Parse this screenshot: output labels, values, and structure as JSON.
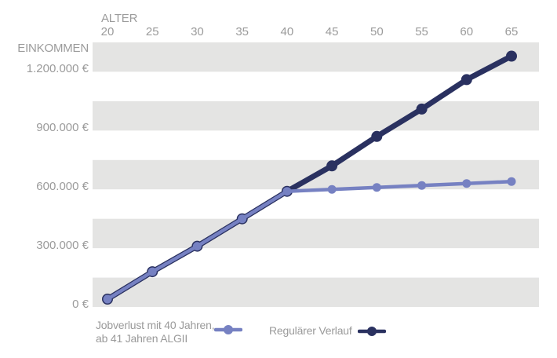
{
  "colors": {
    "background": "#ffffff",
    "band": "#e4e4e3",
    "axis_text": "#9b9b9b",
    "legend_text": "#9a9a9a",
    "series_jobverlust": "#7681c2",
    "series_regulaer": "#2a3160"
  },
  "axes": {
    "x_title": "ALTER",
    "y_title": "EINKOMMEN"
  },
  "legend": {
    "series1_label_line1": "Jobverlust mit 40 Jahren,",
    "series1_label_line2": "ab 41 Jahren ALGII",
    "series2_label": "Regulärer Verlauf"
  },
  "chart_data": {
    "type": "line",
    "title": "",
    "xlabel": "ALTER",
    "ylabel": "EINKOMMEN",
    "x": [
      20,
      25,
      30,
      35,
      40,
      45,
      50,
      55,
      60,
      65
    ],
    "xlim": [
      20,
      65
    ],
    "ylim": [
      0,
      1350000
    ],
    "y_ticks": [
      {
        "value": 0,
        "label": "0 €"
      },
      {
        "value": 300000,
        "label": "300.000 €"
      },
      {
        "value": 600000,
        "label": "600.000 €"
      },
      {
        "value": 900000,
        "label": "900.000 €"
      },
      {
        "value": 1200000,
        "label": "1.200.000 €"
      }
    ],
    "grid": "alternating horizontal gray bands, 150000 per band, gray bands start at each 300000 gridline",
    "legend_position": "bottom-left",
    "series": [
      {
        "name": "Jobverlust mit 40 Jahren, ab 41 Jahren ALGII",
        "color": "#7681c2",
        "values": [
          40000,
          180000,
          310000,
          450000,
          590000,
          600000,
          610000,
          620000,
          630000,
          640000
        ]
      },
      {
        "name": "Regulärer Verlauf",
        "color": "#2a3160",
        "values": [
          40000,
          180000,
          310000,
          450000,
          590000,
          720000,
          870000,
          1010000,
          1160000,
          1280000
        ]
      }
    ]
  }
}
